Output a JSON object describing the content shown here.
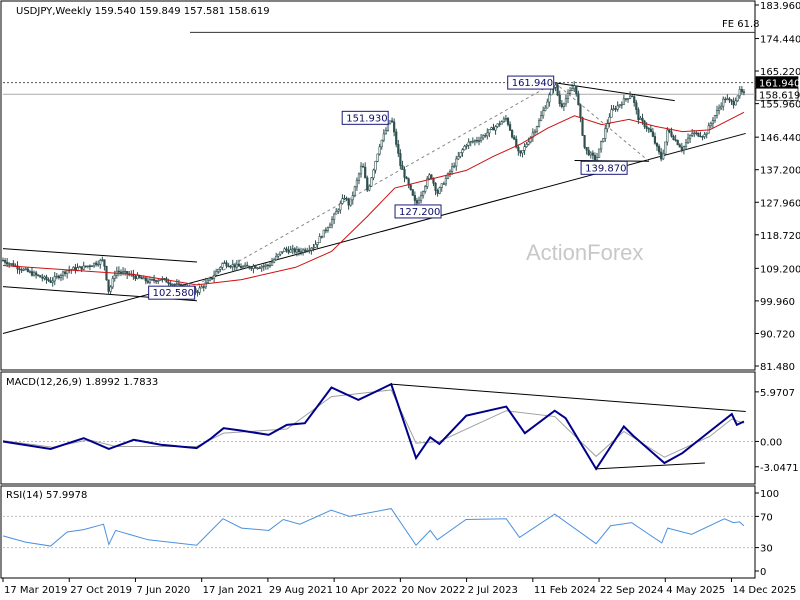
{
  "chart_data": [
    {
      "type": "candlestick",
      "header": "USDJPY,Weekly  159.540 159.849 157.581 158.619",
      "watermark": "ActionForex",
      "y_ticks": [
        "183.960",
        "174.440",
        "165.220",
        "155.960",
        "146.440",
        "137.200",
        "127.960",
        "118.720",
        "109.200",
        "99.960",
        "90.720",
        "81.480"
      ],
      "y_range": [
        81.48,
        183.96
      ],
      "price_tags": [
        {
          "value": 161.94,
          "text": "161.940",
          "color": "#000000"
        },
        {
          "value": 158.619,
          "text": "158.619",
          "color": "#ffffff"
        }
      ],
      "horizontal_lines": [
        {
          "value": 176.2,
          "label": "FE 61.8",
          "style": "solid"
        },
        {
          "value": 161.94,
          "label": "",
          "style": "dotted"
        }
      ],
      "annotations": [
        {
          "text": "161.940",
          "date": "2024-04-25",
          "value": 161.94
        },
        {
          "text": "151.930",
          "date": "2022-10-20",
          "value": 151.93
        },
        {
          "text": "127.200",
          "date": "2023-01-12",
          "value": 127.2
        },
        {
          "text": "139.870",
          "date": "2024-09-12",
          "value": 139.87
        },
        {
          "text": "102.580",
          "date": "2020-12-31",
          "value": 102.58
        }
      ],
      "price_path": [
        [
          "2019-03-17",
          111.5
        ],
        [
          "2019-06-01",
          108.5
        ],
        [
          "2019-08-25",
          105.5
        ],
        [
          "2019-10-20",
          108.7
        ],
        [
          "2019-12-15",
          109.5
        ],
        [
          "2020-02-20",
          111.5
        ],
        [
          "2020-03-09",
          102.4
        ],
        [
          "2020-04-01",
          108.5
        ],
        [
          "2020-05-15",
          107.5
        ],
        [
          "2020-07-20",
          105.5
        ],
        [
          "2020-09-01",
          106.2
        ],
        [
          "2020-11-05",
          104.0
        ],
        [
          "2020-12-31",
          102.6
        ],
        [
          "2021-02-15",
          106.0
        ],
        [
          "2021-03-30",
          110.7
        ],
        [
          "2021-06-01",
          109.5
        ],
        [
          "2021-08-01",
          109.8
        ],
        [
          "2021-09-01",
          110.0
        ],
        [
          "2021-10-20",
          114.5
        ],
        [
          "2021-12-15",
          114.0
        ],
        [
          "2022-02-01",
          115.5
        ],
        [
          "2022-03-31",
          122.5
        ],
        [
          "2022-05-15",
          129.5
        ],
        [
          "2022-06-01",
          127.0
        ],
        [
          "2022-07-14",
          139.0
        ],
        [
          "2022-08-01",
          131.0
        ],
        [
          "2022-09-10",
          144.0
        ],
        [
          "2022-10-20",
          151.9
        ],
        [
          "2022-11-20",
          138.5
        ],
        [
          "2023-01-12",
          127.2
        ],
        [
          "2023-03-01",
          136.0
        ],
        [
          "2023-03-25",
          130.5
        ],
        [
          "2023-06-30",
          144.5
        ],
        [
          "2023-08-15",
          146.0
        ],
        [
          "2023-11-13",
          151.8
        ],
        [
          "2023-12-28",
          141.0
        ],
        [
          "2024-03-01",
          150.5
        ],
        [
          "2024-04-25",
          161.9
        ],
        [
          "2024-05-15",
          155.0
        ],
        [
          "2024-07-03",
          161.5
        ],
        [
          "2024-08-05",
          143.0
        ],
        [
          "2024-09-12",
          139.9
        ],
        [
          "2024-10-31",
          153.5
        ],
        [
          "2025-01-10",
          158.8
        ],
        [
          "2025-02-01",
          152.0
        ],
        [
          "2025-03-15",
          148.0
        ],
        [
          "2025-04-22",
          140.0
        ],
        [
          "2025-05-12",
          148.5
        ],
        [
          "2025-07-01",
          143.0
        ],
        [
          "2025-08-01",
          147.5
        ],
        [
          "2025-09-15",
          147.0
        ],
        [
          "2025-10-15",
          152.0
        ],
        [
          "2025-11-20",
          157.5
        ],
        [
          "2025-12-20",
          156.0
        ],
        [
          "2026-01-10",
          159.5
        ],
        [
          "2026-01-25",
          158.6
        ]
      ],
      "moving_average": [
        [
          "2019-03-17",
          110.0
        ],
        [
          "2020-06-01",
          107.5
        ],
        [
          "2020-12-31",
          104.5
        ],
        [
          "2021-06-01",
          106.0
        ],
        [
          "2021-12-01",
          109.5
        ],
        [
          "2022-04-01",
          114.0
        ],
        [
          "2022-08-01",
          124.0
        ],
        [
          "2022-11-01",
          132.0
        ],
        [
          "2023-03-01",
          134.5
        ],
        [
          "2023-07-01",
          137.0
        ],
        [
          "2023-10-01",
          141.0
        ],
        [
          "2024-01-01",
          144.5
        ],
        [
          "2024-04-01",
          149.0
        ],
        [
          "2024-07-01",
          152.5
        ],
        [
          "2024-10-01",
          150.0
        ],
        [
          "2025-01-01",
          151.5
        ],
        [
          "2025-04-01",
          149.5
        ],
        [
          "2025-07-01",
          148.0
        ],
        [
          "2025-10-01",
          148.5
        ],
        [
          "2026-01-25",
          153.5
        ]
      ],
      "trendlines": [
        {
          "from": [
            "2019-03-17",
            90.7
          ],
          "to": [
            "2026-01-31",
            147.5
          ],
          "style": "solid"
        },
        {
          "from": [
            "2019-03-17",
            114.8
          ],
          "to": [
            "2021-01-01",
            111.0
          ],
          "style": "solid"
        },
        {
          "from": [
            "2019-03-17",
            104.0
          ],
          "to": [
            "2021-01-01",
            100.0
          ],
          "style": "solid"
        },
        {
          "from": [
            "2024-04-25",
            161.9
          ],
          "to": [
            "2025-06-05",
            156.8
          ],
          "style": "solid"
        },
        {
          "from": [
            "2021-01-01",
            104.5
          ],
          "to": [
            "2024-04-25",
            161.9
          ],
          "style": "dashed"
        },
        {
          "from": [
            "2024-04-25",
            161.9
          ],
          "to": [
            "2025-03-10",
            139.6
          ],
          "style": "dashed"
        },
        {
          "from": [
            "2024-07-01",
            139.8
          ],
          "to": [
            "2025-03-10",
            139.6
          ],
          "style": "solid"
        }
      ]
    },
    {
      "type": "line",
      "header": "MACD(12,26,9) 1.8992 1.7833",
      "y_ticks": [
        "5.9707",
        "0.00",
        "-3.0471"
      ],
      "y_range": [
        -4.4,
        7.4
      ],
      "macd_path": [
        [
          "2019-03-17",
          0.0
        ],
        [
          "2019-08-25",
          -0.9
        ],
        [
          "2019-12-15",
          0.4
        ],
        [
          "2020-03-09",
          -0.9
        ],
        [
          "2020-06-01",
          0.2
        ],
        [
          "2020-09-01",
          -0.4
        ],
        [
          "2020-12-31",
          -0.8
        ],
        [
          "2021-02-15",
          0.3
        ],
        [
          "2021-04-01",
          1.6
        ],
        [
          "2021-06-01",
          1.3
        ],
        [
          "2021-09-01",
          0.8
        ],
        [
          "2021-11-01",
          2.0
        ],
        [
          "2022-01-01",
          2.2
        ],
        [
          "2022-04-01",
          6.5
        ],
        [
          "2022-07-01",
          5.0
        ],
        [
          "2022-10-20",
          6.9
        ],
        [
          "2023-01-12",
          -2.0
        ],
        [
          "2023-03-01",
          0.5
        ],
        [
          "2023-04-01",
          -0.3
        ],
        [
          "2023-07-01",
          3.1
        ],
        [
          "2023-11-13",
          4.2
        ],
        [
          "2024-01-15",
          1.0
        ],
        [
          "2024-04-25",
          3.7
        ],
        [
          "2024-06-01",
          2.8
        ],
        [
          "2024-09-12",
          -3.3
        ],
        [
          "2024-12-15",
          1.8
        ],
        [
          "2025-01-15",
          0.7
        ],
        [
          "2025-05-01",
          -2.6
        ],
        [
          "2025-07-01",
          -1.4
        ],
        [
          "2025-10-01",
          1.2
        ],
        [
          "2025-12-15",
          3.3
        ],
        [
          "2026-01-01",
          2.0
        ],
        [
          "2026-01-25",
          2.4
        ]
      ],
      "signal_path": [
        [
          "2019-03-17",
          0.1
        ],
        [
          "2019-09-01",
          -0.7
        ],
        [
          "2020-01-01",
          0.2
        ],
        [
          "2020-04-01",
          -0.6
        ],
        [
          "2020-12-31",
          -0.6
        ],
        [
          "2021-04-01",
          1.0
        ],
        [
          "2021-11-01",
          1.5
        ],
        [
          "2022-04-01",
          5.4
        ],
        [
          "2022-10-20",
          6.2
        ],
        [
          "2023-01-12",
          -0.2
        ],
        [
          "2023-04-01",
          0.0
        ],
        [
          "2023-11-13",
          3.7
        ],
        [
          "2024-04-25",
          3.0
        ],
        [
          "2024-09-12",
          -1.8
        ],
        [
          "2024-12-15",
          1.2
        ],
        [
          "2025-05-01",
          -1.9
        ],
        [
          "2025-10-01",
          0.6
        ],
        [
          "2025-12-15",
          2.7
        ],
        [
          "2026-01-25",
          2.2
        ]
      ],
      "trendlines": [
        {
          "from": [
            "2022-10-20",
            6.9
          ],
          "to": [
            "2026-01-31",
            3.6
          ]
        },
        {
          "from": [
            "2024-09-12",
            -3.3
          ],
          "to": [
            "2025-09-15",
            -2.6
          ]
        }
      ]
    },
    {
      "type": "line",
      "header": "RSI(14) 57.9978",
      "y_ticks": [
        "100",
        "70",
        "30",
        "0"
      ],
      "y_range": [
        0,
        100
      ],
      "rsi_path": [
        [
          "2019-03-17",
          45
        ],
        [
          "2019-06-01",
          37
        ],
        [
          "2019-08-25",
          32
        ],
        [
          "2019-10-20",
          50
        ],
        [
          "2019-12-15",
          53
        ],
        [
          "2020-02-20",
          60
        ],
        [
          "2020-03-09",
          34
        ],
        [
          "2020-04-01",
          52
        ],
        [
          "2020-07-20",
          40
        ],
        [
          "2020-12-31",
          33
        ],
        [
          "2021-03-30",
          67
        ],
        [
          "2021-06-01",
          55
        ],
        [
          "2021-09-01",
          52
        ],
        [
          "2021-10-20",
          66
        ],
        [
          "2021-12-15",
          60
        ],
        [
          "2022-03-31",
          78
        ],
        [
          "2022-06-01",
          70
        ],
        [
          "2022-10-20",
          80
        ],
        [
          "2023-01-12",
          33
        ],
        [
          "2023-03-01",
          52
        ],
        [
          "2023-03-25",
          40
        ],
        [
          "2023-06-30",
          66
        ],
        [
          "2023-11-13",
          67
        ],
        [
          "2023-12-28",
          43
        ],
        [
          "2024-04-25",
          73
        ],
        [
          "2024-09-12",
          35
        ],
        [
          "2024-10-31",
          58
        ],
        [
          "2025-01-10",
          62
        ],
        [
          "2025-04-22",
          36
        ],
        [
          "2025-05-12",
          55
        ],
        [
          "2025-08-01",
          47
        ],
        [
          "2025-11-20",
          67
        ],
        [
          "2025-12-20",
          62
        ],
        [
          "2026-01-10",
          63
        ],
        [
          "2026-01-25",
          58
        ]
      ]
    }
  ],
  "x_axis": {
    "ticks": [
      {
        "date": "2019-03-17",
        "text": "17 Mar 2019"
      },
      {
        "date": "2019-10-27",
        "text": "27 Oct 2019"
      },
      {
        "date": "2020-06-07",
        "text": "7 Jun 2020"
      },
      {
        "date": "2021-01-17",
        "text": "17 Jan 2021"
      },
      {
        "date": "2021-08-29",
        "text": "29 Aug 2021"
      },
      {
        "date": "2022-04-10",
        "text": "10 Apr 2022"
      },
      {
        "date": "2022-11-20",
        "text": "20 Nov 2022"
      },
      {
        "date": "2023-07-02",
        "text": "2 Jul 2023"
      },
      {
        "date": "2024-02-11",
        "text": "11 Feb 2024"
      },
      {
        "date": "2024-09-22",
        "text": "22 Sep 2024"
      },
      {
        "date": "2025-05-04",
        "text": "4 May 2025"
      },
      {
        "date": "2025-12-14",
        "text": "14 Dec 2025"
      }
    ],
    "range": [
      "2019-03-17",
      "2026-02-01"
    ]
  },
  "colors": {
    "price": "#2f4f4f",
    "moving_average": "#cc1111",
    "macd": "#00008b",
    "signal": "#a0a0a0",
    "rsi": "#4a90e2",
    "trendline": "#000000",
    "grid_dash": "#888888"
  }
}
